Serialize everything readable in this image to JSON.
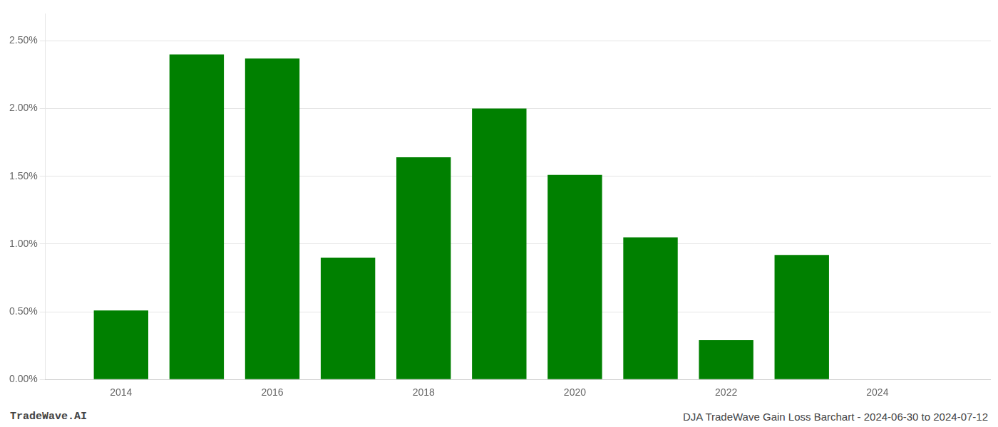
{
  "chart_data": {
    "type": "bar",
    "x": [
      2014,
      2015,
      2016,
      2017,
      2018,
      2019,
      2020,
      2021,
      2022,
      2023
    ],
    "values": [
      0.0051,
      0.024,
      0.0237,
      0.009,
      0.0164,
      0.02,
      0.0151,
      0.0105,
      0.0029,
      0.0092
    ],
    "color": "#008000",
    "xlim": [
      2013.0,
      2025.5
    ],
    "xticks": [
      2014,
      2016,
      2018,
      2020,
      2022,
      2024
    ],
    "ylim": [
      0,
      0.027
    ],
    "yticks": [
      {
        "value": 0.0,
        "label": "0.00%"
      },
      {
        "value": 0.005,
        "label": "0.50%"
      },
      {
        "value": 0.01,
        "label": "1.00%"
      },
      {
        "value": 0.015,
        "label": "1.50%"
      },
      {
        "value": 0.02,
        "label": "2.00%"
      },
      {
        "value": 0.025,
        "label": "2.50%"
      }
    ],
    "grid": "y",
    "annotations": [
      "TradeWave.AI",
      "DJA TradeWave Gain Loss Barchart - 2024-06-30 to 2024-07-12"
    ]
  }
}
